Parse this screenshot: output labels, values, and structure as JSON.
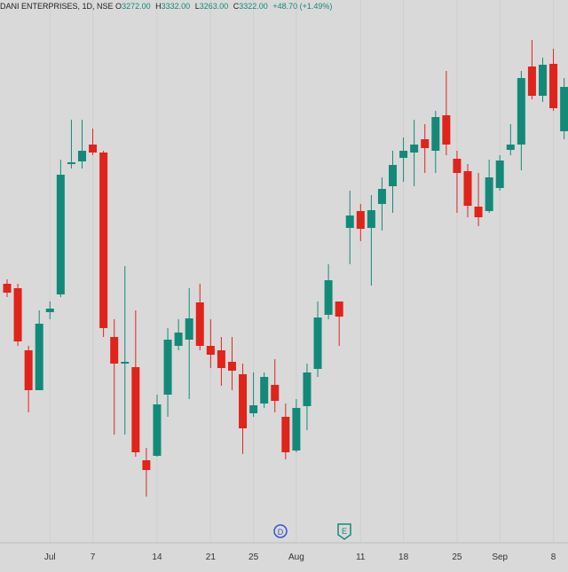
{
  "header": {
    "symbol": "DANI ENTERPRISES, 1D, NSE",
    "o": "O",
    "open": "3272.00",
    "h": "H",
    "high": "3332.00",
    "l": "L",
    "low": "3263.00",
    "c": "C",
    "close": "3322.00",
    "change": "+48.70 (+1.49%)"
  },
  "events": [
    "D",
    "E"
  ],
  "chart_data": {
    "type": "candlestick",
    "categories": [
      null,
      null,
      null,
      null,
      "Jul",
      null,
      null,
      null,
      "7",
      null,
      null,
      null,
      null,
      null,
      "14",
      null,
      null,
      null,
      null,
      "21",
      null,
      null,
      null,
      "25",
      null,
      null,
      null,
      "Aug",
      null,
      null,
      null,
      null,
      null,
      "11",
      null,
      null,
      null,
      "18",
      null,
      null,
      null,
      null,
      "25",
      null,
      null,
      null,
      "Sep",
      null,
      null,
      null,
      null,
      "8",
      null
    ],
    "open": [
      3100,
      3095,
      3025,
      2980,
      3068,
      3088,
      3235,
      3238,
      3257,
      3248,
      3040,
      3010,
      3006,
      2901,
      2906,
      2975,
      3030,
      3037,
      3079,
      3030,
      3025,
      3012,
      2998,
      2954,
      2965,
      2986,
      2950,
      2912,
      2962,
      3004,
      3065,
      3080,
      3163,
      3182,
      3163,
      3190,
      3210,
      3242,
      3248,
      3263,
      3250,
      3290,
      3241,
      3227,
      3187,
      3182,
      3208,
      3251,
      3257,
      3345,
      3312,
      3348,
      3272
    ],
    "high": [
      3105,
      3100,
      3030,
      3070,
      3080,
      3240,
      3285,
      3285,
      3275,
      3250,
      3060,
      3120,
      3070,
      2915,
      2975,
      3050,
      3060,
      3095,
      3100,
      3060,
      3040,
      3040,
      3010,
      3000,
      3000,
      3015,
      2965,
      2970,
      3010,
      3080,
      3122,
      3080,
      3205,
      3190,
      3200,
      3220,
      3250,
      3265,
      3285,
      3280,
      3295,
      3340,
      3250,
      3235,
      3225,
      3240,
      3245,
      3280,
      3340,
      3375,
      3355,
      3365,
      3332
    ],
    "low": [
      3085,
      3030,
      2955,
      2980,
      3060,
      3085,
      3230,
      3230,
      3245,
      3040,
      2930,
      2930,
      2905,
      2860,
      2905,
      2950,
      3025,
      2970,
      3025,
      3005,
      2985,
      2980,
      2908,
      2950,
      2960,
      2955,
      2902,
      2910,
      2935,
      2995,
      3060,
      3030,
      3122,
      3148,
      3098,
      3160,
      3180,
      3215,
      3210,
      3225,
      3225,
      3245,
      3180,
      3175,
      3165,
      3180,
      3205,
      3245,
      3228,
      3308,
      3305,
      3295,
      3263
    ],
    "close": [
      3090,
      3035,
      2980,
      3055,
      3072,
      3223,
      3237,
      3250,
      3248,
      3050,
      3010,
      3012,
      2910,
      2890,
      2964,
      3037,
      3045,
      3061,
      3030,
      3020,
      3005,
      3002,
      2937,
      2963,
      2995,
      2968,
      2910,
      2960,
      3000,
      3062,
      3104,
      3063,
      3177,
      3162,
      3183,
      3207,
      3234,
      3250,
      3257,
      3253,
      3288,
      3257,
      3225,
      3188,
      3175,
      3220,
      3239,
      3257,
      3332,
      3312,
      3347,
      3298,
      3322
    ],
    "up_color": "#138a79",
    "down_color": "#e0231b",
    "ylim": [
      2810,
      3420
    ]
  }
}
